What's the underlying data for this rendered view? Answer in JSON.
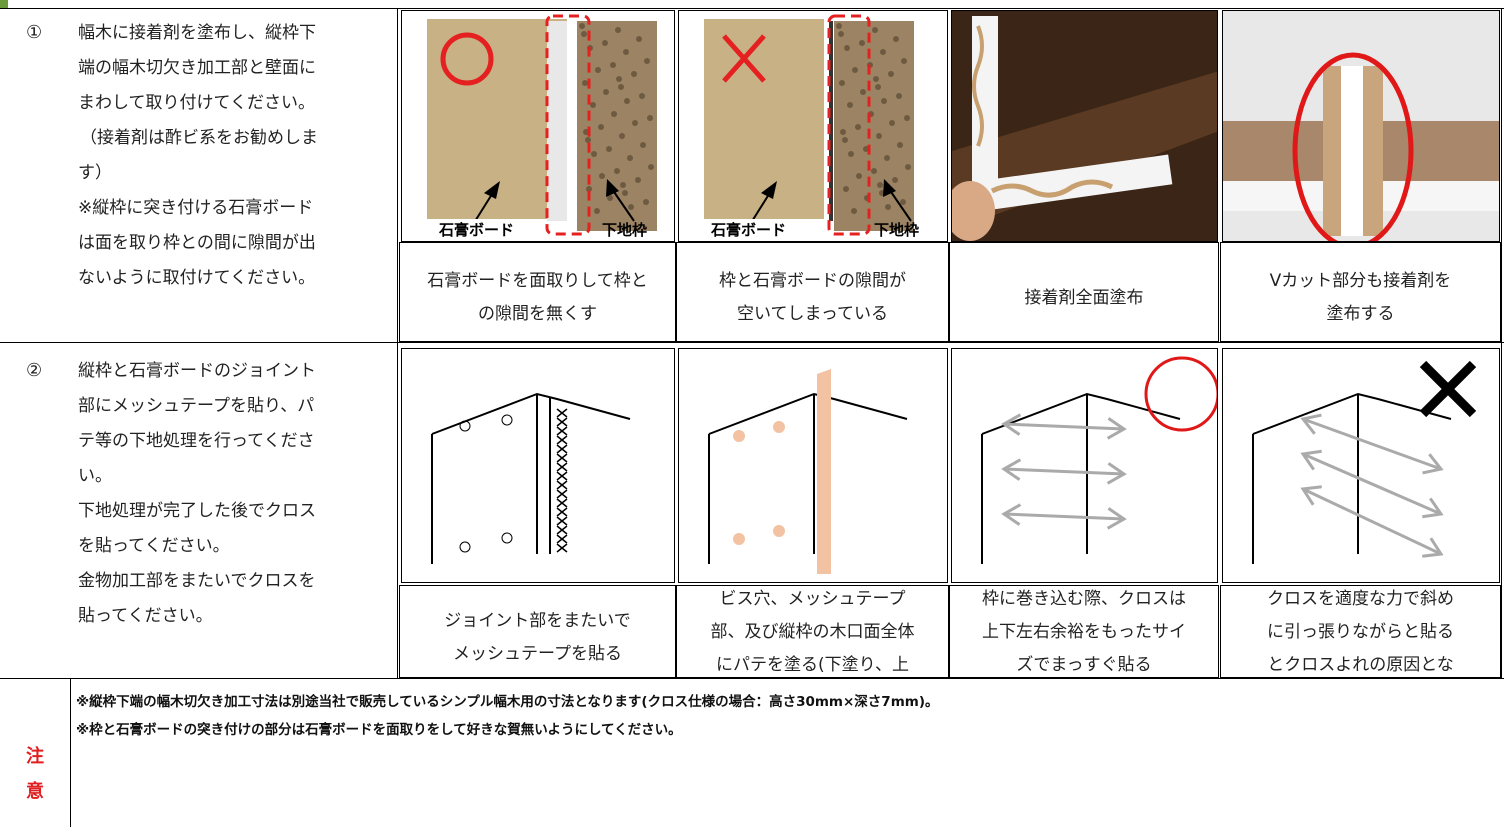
{
  "rows": [
    {
      "number": "①",
      "lines": [
        "幅木に接着剤を塗布し、縦枠下",
        "端の幅木切欠き加工部と壁面に",
        "まわして取り付けてください。",
        "（接着剤は酢ビ系をお勧めしま",
        "す）",
        "※縦枠に突き付ける石膏ボード",
        "は面を取り枠との間に隙間が出",
        "ないように取付けてください。"
      ],
      "photo_labels": [
        "石膏ボード",
        "下地枠"
      ],
      "captions": [
        [
          "石膏ボードを面取りして枠と",
          "の隙間を無くす"
        ],
        [
          "枠と石膏ボードの隙間が",
          "空いてしまっている"
        ],
        [
          "接着剤全面塗布"
        ],
        [
          "Vカット部分も接着剤を",
          "塗布する"
        ]
      ]
    },
    {
      "number": "②",
      "lines": [
        "縦枠と石膏ボードのジョイント",
        "部にメッシュテープを貼り、パ",
        "テ等の下地処理を行ってくださ",
        "い。",
        "下地処理が完了した後でクロス",
        "を貼ってください。",
        "金物加工部をまたいでクロスを",
        "貼ってください。"
      ],
      "captions": [
        [
          "ジョイント部をまたいで",
          "メッシュテープを貼る"
        ],
        [
          "ビス穴、メッシュテープ",
          "部、及び縦枠の木口面全体",
          "にパテを塗る(下塗り、上"
        ],
        [
          "枠に巻き込む際、クロスは",
          "上下左右余裕をもったサイ",
          "ズでまっすぐ貼る"
        ],
        [
          "クロスを適度な力で斜め",
          "に引っ張りながらと貼る",
          "とクロスよれの原因とな"
        ]
      ]
    }
  ],
  "note": {
    "heading": [
      "注",
      "意"
    ],
    "lines": [
      "※縦枠下端の幅木切欠き加工寸法は別途当社で販売しているシンプル幅木用の寸法となります(クロス仕様の場合：高さ30mm×深さ7mm)。",
      "※枠と石膏ボードの突き付けの部分は石膏ボードを面取りをして好きな賀無いようにしてください。"
    ]
  }
}
